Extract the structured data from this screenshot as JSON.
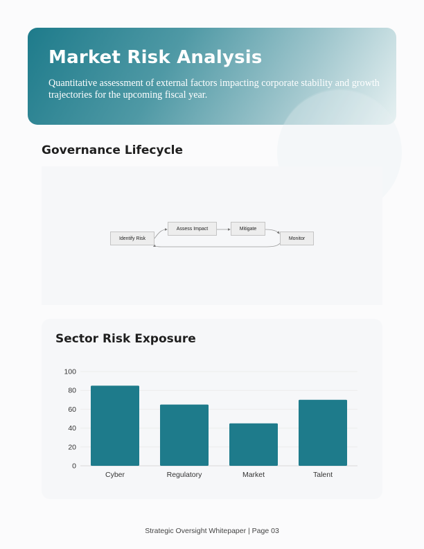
{
  "hero": {
    "title": "Market Risk Analysis",
    "subtitle": "Quantitative assessment of external factors impacting corporate stability and growth trajectories for the upcoming fiscal year."
  },
  "lifecycle": {
    "title": "Governance Lifecycle",
    "nodes": {
      "identify": "Identify Risk",
      "assess": "Assess Impact",
      "mitigate": "Mitigate",
      "monitor": "Monitor"
    }
  },
  "exposure": {
    "title": "Sector Risk Exposure"
  },
  "chart_data": {
    "type": "bar",
    "categories": [
      "Cyber",
      "Regulatory",
      "Market",
      "Talent"
    ],
    "values": [
      85,
      65,
      45,
      70
    ],
    "ylim": [
      0,
      100
    ],
    "yticks": [
      0,
      20,
      40,
      60,
      80,
      100
    ],
    "grid": true,
    "bar_color": "#1e7b8b"
  },
  "footer": {
    "text": "Strategic Oversight Whitepaper | Page 03"
  }
}
